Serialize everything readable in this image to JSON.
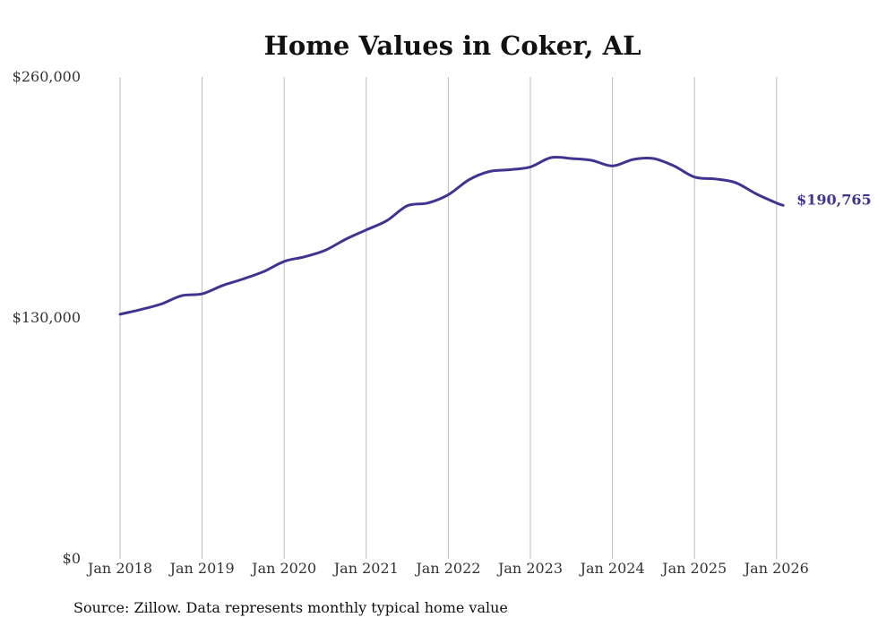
{
  "chart_data": {
    "type": "line",
    "title": "Home Values in Coker, AL",
    "xlabel": "",
    "ylabel": "",
    "ylim": [
      0,
      260000
    ],
    "y_ticks": [
      {
        "value": 0,
        "label": "$0"
      },
      {
        "value": 130000,
        "label": "$130,000"
      },
      {
        "value": 260000,
        "label": "$260,000"
      }
    ],
    "x_ticks": [
      "Jan 2018",
      "Jan 2019",
      "Jan 2020",
      "Jan 2021",
      "Jan 2022",
      "Jan 2023",
      "Jan 2024",
      "Jan 2025",
      "Jan 2026"
    ],
    "grid": "vertical",
    "series": [
      {
        "name": "Typical home value",
        "color": "#3f3590",
        "x": [
          2018.0,
          2018.25,
          2018.5,
          2018.75,
          2019.0,
          2019.25,
          2019.5,
          2019.75,
          2020.0,
          2020.25,
          2020.5,
          2020.75,
          2021.0,
          2021.25,
          2021.5,
          2021.75,
          2022.0,
          2022.25,
          2022.5,
          2022.75,
          2023.0,
          2023.25,
          2023.5,
          2023.75,
          2024.0,
          2024.25,
          2024.5,
          2024.75,
          2025.0,
          2025.25,
          2025.5,
          2025.75,
          2026.0,
          2026.08
        ],
        "values": [
          132000,
          134500,
          137500,
          142000,
          143000,
          147500,
          151000,
          155000,
          160500,
          163000,
          166500,
          172500,
          177500,
          182500,
          190500,
          192000,
          196500,
          204500,
          209000,
          210000,
          211500,
          216500,
          216000,
          215000,
          212000,
          215500,
          216000,
          212000,
          206000,
          205000,
          203000,
          197000,
          192000,
          190765
        ]
      }
    ],
    "end_label": "$190,765",
    "source": "Source: Zillow. Data represents monthly typical home value"
  }
}
